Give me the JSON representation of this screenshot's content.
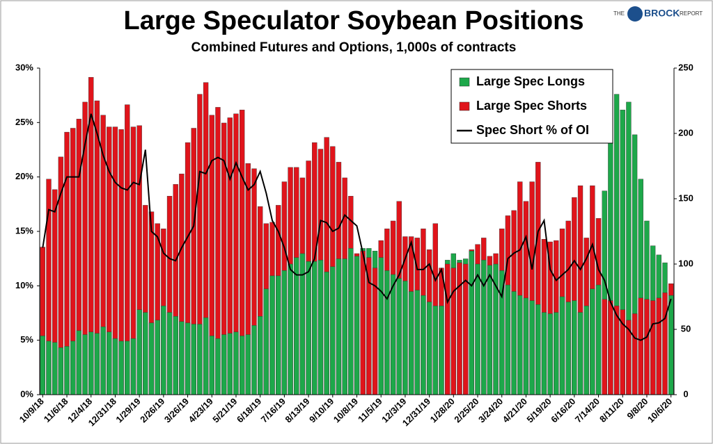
{
  "chart_data": {
    "type": "bar-line",
    "title": "Large Speculator Soybean Positions",
    "subtitle": "Combined Futures and Options, 1,000s of contracts",
    "categories": [
      "10/9/18",
      null,
      null,
      null,
      "11/6/18",
      null,
      null,
      null,
      "12/4/18",
      null,
      null,
      null,
      "12/31/18",
      null,
      null,
      null,
      "1/29/19",
      null,
      null,
      null,
      "2/26/19",
      null,
      null,
      null,
      "3/26/19",
      null,
      null,
      null,
      "4/23/19",
      null,
      null,
      null,
      "5/21/19",
      null,
      null,
      null,
      "6/18/19",
      null,
      null,
      null,
      "7/16/19",
      null,
      null,
      null,
      "8/13/19",
      null,
      null,
      null,
      "9/10/19",
      null,
      null,
      null,
      "10/8/19",
      null,
      null,
      null,
      "11/5/19",
      null,
      null,
      null,
      "12/3/19",
      null,
      null,
      null,
      "12/31/19",
      null,
      null,
      null,
      "1/28/20",
      null,
      null,
      null,
      "2/25/20",
      null,
      null,
      null,
      "3/24/20",
      null,
      null,
      null,
      "4/21/20",
      null,
      null,
      null,
      "5/19/20",
      null,
      null,
      null,
      "6/16/20",
      null,
      null,
      null,
      "7/14/20",
      null,
      null,
      null,
      "8/11/20",
      null,
      null,
      null,
      "9/8/20",
      null,
      null,
      null,
      "10/6/20"
    ],
    "series": [
      {
        "name": "Large Spec Longs",
        "color": "#1da84a",
        "axis": "y2",
        "kind": "bar",
        "values": [
          45,
          41,
          40,
          36,
          37,
          41,
          49,
          46,
          48,
          47,
          52,
          48,
          43,
          41,
          41,
          43,
          65,
          63,
          55,
          57,
          68,
          63,
          60,
          56,
          55,
          54,
          54,
          59,
          45,
          43,
          46,
          47,
          48,
          45,
          46,
          53,
          60,
          81,
          91,
          91,
          95,
          100,
          105,
          108,
          102,
          102,
          103,
          94,
          98,
          104,
          104,
          112,
          106,
          112,
          112,
          110,
          105,
          95,
          92,
          89,
          87,
          79,
          80,
          76,
          71,
          68,
          68,
          103,
          108,
          103,
          104,
          110,
          100,
          103,
          99,
          100,
          95,
          84,
          79,
          76,
          74,
          72,
          69,
          63,
          62,
          63,
          75,
          71,
          72,
          63,
          68,
          81,
          84,
          156,
          193,
          230,
          218,
          224,
          199,
          165,
          133,
          114,
          107,
          101,
          76
        ]
      },
      {
        "name": "Large Spec Shorts",
        "color": "#e0141b",
        "axis": "y2",
        "kind": "bar",
        "values": [
          113,
          165,
          157,
          182,
          201,
          204,
          211,
          224,
          243,
          225,
          214,
          205,
          205,
          203,
          222,
          205,
          206,
          145,
          140,
          131,
          127,
          152,
          161,
          169,
          193,
          204,
          230,
          239,
          214,
          220,
          208,
          212,
          215,
          218,
          177,
          173,
          144,
          131,
          132,
          145,
          163,
          174,
          174,
          166,
          179,
          193,
          188,
          197,
          190,
          178,
          166,
          152,
          108,
          110,
          105,
          97,
          118,
          127,
          133,
          148,
          121,
          121,
          120,
          127,
          111,
          131,
          97,
          100,
          97,
          101,
          100,
          111,
          115,
          120,
          106,
          108,
          127,
          137,
          141,
          163,
          148,
          163,
          178,
          119,
          117,
          118,
          127,
          133,
          151,
          160,
          120,
          160,
          135,
          73,
          72,
          68,
          65,
          57,
          62,
          74,
          73,
          72,
          74,
          78,
          85
        ]
      },
      {
        "name": "Spec Short % of OI",
        "color": "#000000",
        "axis": "y",
        "kind": "line",
        "values": [
          13.5,
          17,
          16.8,
          18.5,
          20,
          20,
          20,
          23,
          25.8,
          24,
          22,
          20.5,
          19.5,
          19,
          18.8,
          19.5,
          19.3,
          22.5,
          15,
          14.5,
          13,
          12.5,
          12.3,
          13.5,
          14.5,
          15.5,
          20.5,
          20.3,
          21.5,
          21.8,
          21.5,
          19.8,
          21.3,
          20,
          18.8,
          19.3,
          20.5,
          18.5,
          16,
          15,
          13.5,
          11.5,
          11,
          11,
          11.3,
          12.5,
          16,
          15.8,
          15,
          15.3,
          16.5,
          16,
          15.5,
          13,
          10.3,
          10,
          9.5,
          8.8,
          10,
          11,
          12.5,
          14,
          11.5,
          11.5,
          12,
          10.5,
          11.5,
          8.5,
          9.5,
          10,
          10.5,
          10,
          11,
          10,
          11,
          10,
          9,
          12.5,
          13,
          13.3,
          14.5,
          11.5,
          15,
          16,
          11.5,
          10.5,
          11,
          11.5,
          12.3,
          11.5,
          12.5,
          13.8,
          11.5,
          10.5,
          8.5,
          7.3,
          6.5,
          6,
          5.2,
          5,
          5.3,
          6.5,
          6.6,
          7,
          8.8
        ]
      }
    ],
    "ylim": [
      0,
      30
    ],
    "yticks": [
      {
        "value": 0,
        "label": "0%"
      },
      {
        "value": 5,
        "label": "5%"
      },
      {
        "value": 10,
        "label": "10%"
      },
      {
        "value": 15,
        "label": "15%"
      },
      {
        "value": 20,
        "label": "20%"
      },
      {
        "value": 25,
        "label": "25%"
      },
      {
        "value": 30,
        "label": "30%"
      }
    ],
    "y2lim": [
      0,
      250
    ],
    "y2ticks": [
      0,
      50,
      100,
      150,
      200,
      250
    ],
    "legend": "top-right",
    "grid": false
  },
  "logo": {
    "left": "THE",
    "name": "BROCK",
    "right": "REPORT"
  }
}
